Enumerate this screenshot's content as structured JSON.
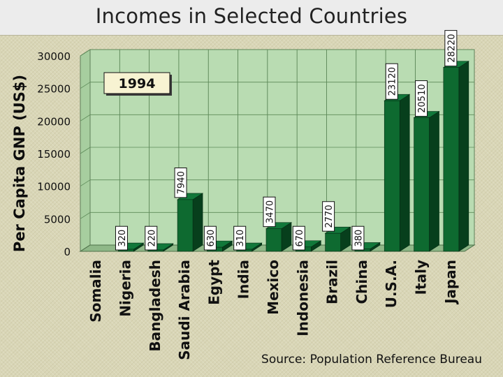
{
  "title": "Incomes in Selected Countries",
  "source": "Source: Population Reference Bureau",
  "colors": {
    "bar_front": "#0e6a30",
    "bar_side": "#073f1c",
    "bar_top": "#11783a",
    "plot_bg": "#b9dcb2",
    "wall": "#c9e3c4"
  },
  "chart_data": {
    "type": "bar",
    "title": "Incomes in Selected Countries",
    "ylabel": "Per Capita GNP (US$)",
    "xlabel": "",
    "annotation": "1994",
    "categories": [
      "Somalia",
      "Nigeria",
      "Bangladesh",
      "Saudi Arabia",
      "Egypt",
      "India",
      "Mexico",
      "Indonesia",
      "Brazil",
      "China",
      "U.S.A.",
      "Italy",
      "Japan"
    ],
    "values": [
      null,
      320,
      220,
      7940,
      630,
      310,
      3470,
      670,
      2770,
      380,
      23120,
      20510,
      28220
    ],
    "value_labels": [
      "",
      "320",
      "220",
      "7940",
      "630",
      "310",
      "3470",
      "670",
      "2770",
      "380",
      "23120",
      "20510",
      "28220"
    ],
    "ylim": [
      0,
      30000
    ],
    "yticks": [
      0,
      5000,
      10000,
      15000,
      20000,
      25000,
      30000
    ],
    "ytick_labels": [
      "0",
      "5000",
      "10000",
      "15000",
      "20000",
      "25000",
      "30000"
    ],
    "grid": true,
    "legend": "none"
  }
}
